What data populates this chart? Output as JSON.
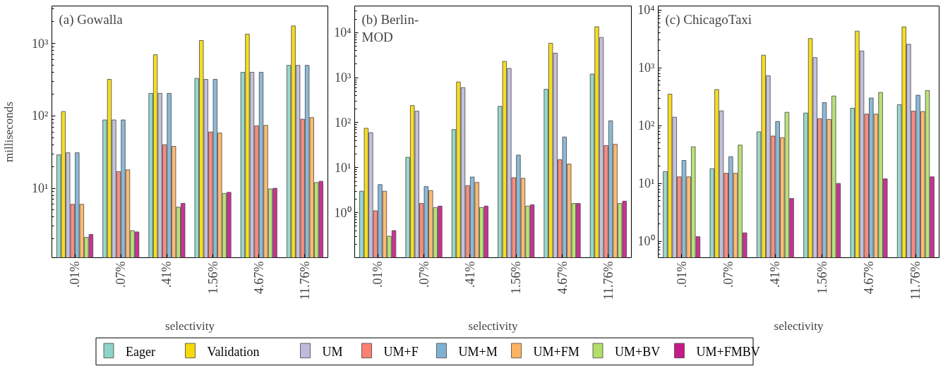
{
  "chart_data": [
    {
      "type": "bar",
      "title": "(a) Gowalla",
      "xlabel": "selectivity",
      "ylabel": "milliseconds",
      "log": true,
      "grid": false,
      "legend": "bottom",
      "ylim": [
        1.1,
        3300
      ],
      "yticks": [
        {
          "value": 10,
          "label": "10¹"
        },
        {
          "value": 100,
          "label": "10²"
        },
        {
          "value": 1000,
          "label": "10³"
        }
      ],
      "categories": [
        ".01%",
        ".07%",
        ".41%",
        "1.56%",
        "4.67%",
        "11.76%"
      ],
      "series": [
        {
          "name": "Eager",
          "color": "#8dd3c7",
          "values": [
            29,
            88,
            205,
            330,
            400,
            500
          ]
        },
        {
          "name": "Validation",
          "color": "#f5d90a",
          "values": [
            115,
            320,
            700,
            1100,
            1350,
            1750
          ]
        },
        {
          "name": "UM",
          "color": "#bebada",
          "values": [
            31,
            88,
            205,
            320,
            400,
            500
          ]
        },
        {
          "name": "UM+F",
          "color": "#fb8072",
          "values": [
            6,
            17,
            40,
            60,
            73,
            90
          ]
        },
        {
          "name": "UM+M",
          "color": "#80b1d3",
          "values": [
            31,
            88,
            205,
            320,
            400,
            500
          ]
        },
        {
          "name": "UM+FM",
          "color": "#fdb462",
          "values": [
            6,
            18,
            38,
            58,
            74,
            95
          ]
        },
        {
          "name": "UM+BV",
          "color": "#b3de69",
          "values": [
            2.1,
            2.6,
            5.5,
            8.5,
            9.8,
            12
          ]
        },
        {
          "name": "UM+FMBV",
          "color": "#c51b8a",
          "values": [
            2.3,
            2.5,
            6.2,
            8.8,
            10,
            12.5
          ]
        }
      ]
    },
    {
      "type": "bar",
      "title": "(b) Berlin-\nMOD",
      "xlabel": "selectivity",
      "log": true,
      "grid": false,
      "ylim": [
        0.1,
        39000
      ],
      "yticks": [
        {
          "value": 1,
          "label": "10⁰"
        },
        {
          "value": 10,
          "label": "10¹"
        },
        {
          "value": 100,
          "label": "10²"
        },
        {
          "value": 1000,
          "label": "10³"
        },
        {
          "value": 10000,
          "label": "10⁴"
        }
      ],
      "categories": [
        ".01%",
        ".07%",
        ".41%",
        "1.56%",
        "4.67%",
        "11.76%"
      ],
      "series": [
        {
          "color": "#8dd3c7",
          "values": [
            3,
            17,
            70,
            230,
            550,
            1200
          ]
        },
        {
          "color": "#f5d90a",
          "values": [
            75,
            240,
            800,
            2300,
            5800,
            13500
          ]
        },
        {
          "color": "#bebada",
          "values": [
            60,
            180,
            600,
            1600,
            3500,
            7800
          ]
        },
        {
          "color": "#fb8072",
          "values": [
            1.1,
            1.6,
            4,
            6,
            15,
            31
          ]
        },
        {
          "color": "#80b1d3",
          "values": [
            4.2,
            3.8,
            6.2,
            19,
            48,
            110
          ]
        },
        {
          "color": "#fdb462",
          "values": [
            3,
            3.1,
            4.7,
            5.8,
            12,
            33
          ]
        },
        {
          "color": "#b3de69",
          "values": [
            0.3,
            1.3,
            1.3,
            1.4,
            1.6,
            1.6
          ]
        },
        {
          "color": "#c51b8a",
          "values": [
            0.4,
            1.4,
            1.4,
            1.5,
            1.6,
            1.8
          ]
        }
      ]
    },
    {
      "type": "bar",
      "title": "(c) ChicagoTaxi",
      "xlabel": "selectivity",
      "log": true,
      "grid": false,
      "ylim": [
        0.52,
        11700
      ],
      "yticks": [
        {
          "value": 1,
          "label": "10⁰"
        },
        {
          "value": 10,
          "label": "10¹"
        },
        {
          "value": 100,
          "label": "10²"
        },
        {
          "value": 1000,
          "label": "10³"
        },
        {
          "value": 10000,
          "label": "10⁴"
        }
      ],
      "categories": [
        ".01%",
        ".07%",
        ".41%",
        "1.56%",
        "4.67%",
        "11.76%"
      ],
      "series": [
        {
          "color": "#8dd3c7",
          "values": [
            16,
            18,
            78,
            165,
            200,
            230
          ]
        },
        {
          "color": "#f5d90a",
          "values": [
            350,
            420,
            1650,
            3200,
            4300,
            5100
          ]
        },
        {
          "color": "#bebada",
          "values": [
            140,
            180,
            730,
            1500,
            1950,
            2550
          ]
        },
        {
          "color": "#fb8072",
          "values": [
            13,
            15,
            66,
            132,
            158,
            178
          ]
        },
        {
          "color": "#80b1d3",
          "values": [
            25,
            29,
            118,
            250,
            300,
            335
          ]
        },
        {
          "color": "#fdb462",
          "values": [
            13,
            15,
            62,
            128,
            158,
            175
          ]
        },
        {
          "color": "#b3de69",
          "values": [
            43,
            46,
            170,
            325,
            375,
            405
          ]
        },
        {
          "color": "#c51b8a",
          "values": [
            1.2,
            1.4,
            5.5,
            10,
            12,
            13
          ]
        }
      ]
    }
  ]
}
